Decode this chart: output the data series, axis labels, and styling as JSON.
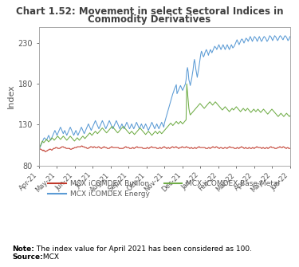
{
  "title_line1": "Chart 1.52: Movement in select Sectoral Indices in",
  "title_line2": "Commodity Derivatives",
  "ylabel": "Index",
  "ylim": [
    80,
    250
  ],
  "yticks": [
    80,
    130,
    180,
    230
  ],
  "xtick_labels": [
    "Apr-21",
    "May-21",
    "Jun-21",
    "Jul-21",
    "Aug-21",
    "Sep-21",
    "Oct-21",
    "Nov-21",
    "Dec-21",
    "Jan-22",
    "Feb-22",
    "Mar-22",
    "Apr-22",
    "May-22",
    "Jun-22"
  ],
  "series": {
    "bullion": {
      "label": "MCX iCOMDEX Bullion",
      "color": "#c0392b",
      "data": [
        100,
        101,
        100,
        100,
        99,
        99,
        98,
        99,
        98,
        97,
        97,
        98,
        98,
        99,
        99,
        100,
        100,
        100,
        99,
        99,
        100,
        101,
        101,
        101,
        102,
        102,
        102,
        101,
        101,
        101,
        101,
        102,
        102,
        103,
        103,
        103,
        102,
        102,
        102,
        101,
        101,
        101,
        101,
        101,
        101,
        100,
        100,
        100,
        101,
        101,
        101,
        102,
        102,
        102,
        102,
        103,
        103,
        103,
        103,
        103,
        103,
        104,
        104,
        103,
        103,
        103,
        102,
        102,
        102,
        101,
        101,
        101,
        102,
        102,
        103,
        103,
        103,
        102,
        102,
        103,
        103,
        102,
        102,
        102,
        102,
        103,
        103,
        102,
        102,
        101,
        101,
        102,
        102,
        103,
        103,
        102,
        102,
        102,
        101,
        101,
        101,
        101,
        102,
        102,
        103,
        103,
        102,
        102,
        102,
        102,
        102,
        102,
        102,
        102,
        102,
        101,
        101,
        101,
        101,
        101,
        101,
        101,
        102,
        102,
        103,
        103,
        102,
        102,
        102,
        102,
        101,
        101,
        101,
        101,
        102,
        102,
        101,
        101,
        102,
        102,
        103,
        103,
        102,
        102,
        102,
        102,
        102,
        102,
        102,
        101,
        101,
        101,
        101,
        101,
        101,
        102,
        102,
        101,
        101,
        102,
        102,
        103,
        103,
        102,
        102,
        102,
        102,
        102,
        102,
        101,
        101,
        101,
        101,
        102,
        102,
        101,
        101,
        102,
        102,
        103,
        103,
        102,
        102,
        101,
        101,
        102,
        102,
        101,
        101,
        102,
        102,
        103,
        103,
        102,
        102,
        102,
        103,
        103,
        102,
        102,
        101,
        101,
        102,
        102,
        102,
        103,
        103,
        102,
        102,
        102,
        102,
        103,
        103,
        102,
        102,
        102,
        101,
        101,
        102,
        102,
        101,
        101,
        101,
        102,
        102,
        101,
        101,
        102,
        102,
        103,
        103,
        102,
        102,
        102,
        102,
        102,
        102,
        102,
        102,
        101,
        101,
        101,
        101,
        102,
        102,
        101,
        101,
        102,
        102,
        103,
        103,
        102,
        102,
        102,
        103,
        103,
        102,
        102,
        101,
        101,
        102,
        102,
        102,
        101,
        101,
        101,
        102,
        102,
        102,
        101,
        101,
        102,
        102,
        103,
        103,
        102,
        102,
        102,
        102,
        102,
        101,
        101,
        101,
        101,
        102,
        102,
        101,
        101,
        102,
        102,
        103,
        103,
        102,
        102,
        101,
        101,
        102,
        102,
        101,
        101,
        101,
        102,
        102,
        101,
        101,
        101,
        102,
        102,
        101,
        101,
        102,
        102,
        103,
        103,
        102,
        102,
        102,
        102,
        102,
        101,
        101,
        102,
        102,
        101,
        101,
        101,
        102,
        102,
        101,
        101,
        102,
        102,
        103,
        103,
        102,
        102,
        102,
        102,
        101,
        101,
        101,
        101,
        102,
        102,
        102,
        103,
        103,
        102,
        102,
        102,
        103,
        103,
        102,
        102,
        101,
        101,
        102,
        102,
        101,
        101,
        101
      ]
    },
    "energy": {
      "label": "MCX iCOMDEX Energy",
      "color": "#5b9bd5",
      "data": [
        100,
        101,
        103,
        105,
        107,
        109,
        111,
        113,
        114,
        113,
        112,
        111,
        113,
        115,
        117,
        115,
        113,
        111,
        113,
        115,
        117,
        119,
        121,
        123,
        121,
        119,
        117,
        119,
        121,
        123,
        125,
        127,
        125,
        123,
        121,
        119,
        121,
        123,
        121,
        119,
        117,
        119,
        121,
        123,
        125,
        127,
        125,
        123,
        121,
        119,
        117,
        119,
        121,
        123,
        121,
        119,
        117,
        119,
        121,
        123,
        125,
        127,
        125,
        123,
        121,
        119,
        121,
        123,
        125,
        127,
        129,
        131,
        129,
        127,
        125,
        123,
        125,
        127,
        129,
        131,
        133,
        135,
        133,
        131,
        129,
        127,
        125,
        127,
        129,
        131,
        133,
        135,
        133,
        131,
        129,
        127,
        125,
        127,
        129,
        131,
        133,
        135,
        133,
        131,
        129,
        127,
        125,
        127,
        129,
        131,
        133,
        135,
        133,
        131,
        129,
        127,
        125,
        127,
        129,
        131,
        129,
        127,
        125,
        127,
        129,
        131,
        133,
        131,
        129,
        127,
        125,
        127,
        129,
        131,
        129,
        127,
        125,
        127,
        129,
        131,
        133,
        131,
        129,
        127,
        125,
        127,
        129,
        131,
        129,
        127,
        125,
        127,
        129,
        131,
        129,
        127,
        125,
        123,
        125,
        127,
        129,
        131,
        133,
        131,
        129,
        127,
        125,
        127,
        129,
        131,
        129,
        127,
        125,
        127,
        129,
        131,
        133,
        131,
        129,
        127,
        132,
        135,
        138,
        141,
        144,
        147,
        150,
        153,
        156,
        159,
        162,
        165,
        168,
        170,
        173,
        175,
        177,
        179,
        168,
        170,
        172,
        174,
        176,
        178,
        176,
        174,
        172,
        174,
        176,
        178,
        180,
        185,
        195,
        200,
        195,
        185,
        182,
        178,
        182,
        186,
        192,
        197,
        205,
        210,
        205,
        198,
        193,
        188,
        193,
        198,
        204,
        210,
        216,
        220,
        218,
        215,
        213,
        215,
        218,
        220,
        222,
        220,
        218,
        215,
        218,
        220,
        222,
        220,
        218,
        220,
        222,
        224,
        226,
        225,
        224,
        222,
        224,
        226,
        228,
        226,
        224,
        222,
        224,
        226,
        228,
        226,
        224,
        222,
        224,
        226,
        228,
        226,
        224,
        222,
        224,
        226,
        228,
        226,
        224,
        225,
        226,
        228,
        230,
        232,
        234,
        232,
        230,
        228,
        230,
        232,
        234,
        235,
        234,
        232,
        230,
        232,
        234,
        236,
        235,
        234,
        232,
        234,
        236,
        238,
        236,
        234,
        232,
        234,
        236,
        238,
        237,
        236,
        234,
        232,
        234,
        236,
        238,
        236,
        234,
        232,
        233,
        235,
        237,
        238,
        237,
        236,
        234,
        232,
        233,
        235,
        237,
        239,
        238,
        237,
        235,
        233,
        235,
        237,
        239,
        238,
        237,
        235,
        233,
        234,
        236,
        238,
        239,
        238,
        237,
        235,
        234,
        236,
        238,
        239,
        238,
        237,
        235,
        233,
        234,
        236,
        238
      ]
    },
    "basemetal": {
      "label": "MCX iCOMDEX Base Metal",
      "color": "#70ad47",
      "data": [
        100,
        102,
        104,
        106,
        108,
        110,
        109,
        108,
        109,
        110,
        111,
        112,
        111,
        110,
        109,
        110,
        111,
        112,
        113,
        114,
        113,
        112,
        111,
        112,
        113,
        114,
        115,
        116,
        115,
        114,
        113,
        112,
        113,
        114,
        115,
        116,
        115,
        114,
        113,
        112,
        111,
        112,
        113,
        114,
        115,
        116,
        115,
        114,
        113,
        112,
        111,
        110,
        111,
        112,
        113,
        114,
        113,
        112,
        111,
        112,
        113,
        114,
        115,
        116,
        115,
        114,
        113,
        114,
        115,
        116,
        117,
        118,
        119,
        120,
        119,
        118,
        117,
        118,
        119,
        120,
        121,
        122,
        121,
        120,
        119,
        120,
        121,
        122,
        123,
        124,
        125,
        126,
        125,
        124,
        123,
        122,
        121,
        120,
        121,
        122,
        123,
        124,
        125,
        126,
        127,
        128,
        127,
        126,
        125,
        124,
        123,
        122,
        121,
        120,
        121,
        122,
        123,
        124,
        125,
        126,
        127,
        128,
        127,
        126,
        125,
        124,
        123,
        122,
        121,
        120,
        119,
        120,
        121,
        122,
        121,
        120,
        119,
        118,
        119,
        120,
        121,
        122,
        123,
        124,
        125,
        126,
        125,
        124,
        123,
        122,
        121,
        120,
        119,
        118,
        119,
        120,
        121,
        122,
        121,
        120,
        119,
        118,
        117,
        118,
        119,
        120,
        121,
        122,
        121,
        120,
        119,
        120,
        121,
        122,
        121,
        120,
        119,
        120,
        121,
        122,
        123,
        124,
        125,
        126,
        127,
        128,
        129,
        130,
        131,
        132,
        131,
        130,
        129,
        130,
        131,
        132,
        133,
        134,
        133,
        132,
        131,
        132,
        133,
        134,
        133,
        132,
        131,
        132,
        133,
        134,
        135,
        136,
        180,
        170,
        160,
        150,
        145,
        142,
        143,
        144,
        145,
        146,
        147,
        148,
        149,
        150,
        151,
        152,
        153,
        154,
        155,
        156,
        155,
        154,
        153,
        152,
        151,
        150,
        151,
        152,
        153,
        154,
        155,
        156,
        157,
        158,
        157,
        156,
        155,
        154,
        155,
        156,
        157,
        158,
        157,
        156,
        155,
        154,
        153,
        152,
        151,
        150,
        149,
        148,
        149,
        150,
        151,
        152,
        151,
        150,
        149,
        148,
        147,
        146,
        147,
        148,
        149,
        150,
        149,
        148,
        149,
        150,
        151,
        152,
        151,
        150,
        149,
        148,
        147,
        146,
        147,
        148,
        149,
        150,
        149,
        148,
        147,
        148,
        149,
        150,
        149,
        148,
        147,
        146,
        145,
        146,
        147,
        148,
        149,
        148,
        147,
        146,
        147,
        148,
        149,
        148,
        147,
        146,
        145,
        146,
        147,
        148,
        149,
        148,
        147,
        146,
        145,
        144,
        143,
        144,
        145,
        146,
        147,
        148,
        149,
        148,
        147,
        146,
        145,
        144,
        143,
        142,
        141,
        140,
        141,
        142,
        143,
        144,
        143,
        142,
        141,
        140,
        141,
        142,
        143,
        144,
        143,
        142,
        141,
        140,
        141
      ]
    }
  },
  "background_color": "#ffffff",
  "title_color": "#404040",
  "axis_color": "#595959",
  "legend_border_color": "#aaaaaa",
  "note_bold": "Note:",
  "note_text": " The index value for April 2021 has been considered as 100.",
  "source_bold": "Source:",
  "source_text": " MCX"
}
